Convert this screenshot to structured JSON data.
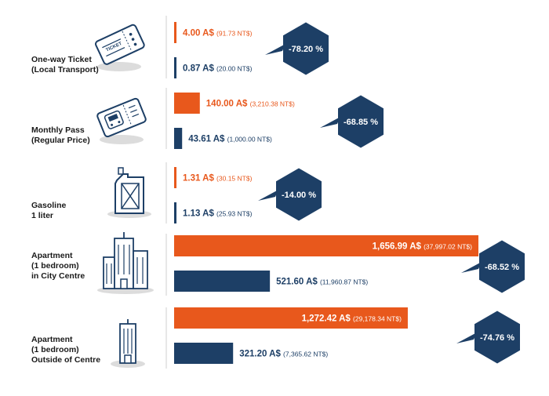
{
  "colors": {
    "orange": "#E8581C",
    "navy": "#1D3F66",
    "icon_stroke": "#1D3F66",
    "icon_shadow": "#DCDCDC"
  },
  "chart_data": {
    "type": "bar",
    "orientation": "horizontal",
    "categories": [
      {
        "lines": [
          "One-way Ticket",
          "(Local Transport)"
        ],
        "icon": "ticket-icon"
      },
      {
        "lines": [
          "Monthly Pass",
          "(Regular Price)"
        ],
        "icon": "train-pass-icon"
      },
      {
        "lines": [
          "Gasoline",
          "1 liter"
        ],
        "icon": "jerrycan-icon"
      },
      {
        "lines": [
          "Apartment",
          "(1 bedroom)",
          "in City Centre"
        ],
        "icon": "city-buildings-icon"
      },
      {
        "lines": [
          "Apartment",
          "(1 bedroom)",
          "Outside of Centre"
        ],
        "icon": "single-building-icon"
      }
    ],
    "series": [
      {
        "color": "#E8581C",
        "values": [
          4.0,
          140.0,
          1.31,
          1656.99,
          1272.42
        ],
        "labels": [
          "4.00 A$",
          "140.00 A$",
          "1.31 A$",
          "1,656.99 A$",
          "1,272.42 A$"
        ],
        "sub_labels": [
          "(91.73 NT$)",
          "(3,210.38 NT$)",
          "(30.15 NT$)",
          "(37,997.02 NT$)",
          "(29,178.34 NT$)"
        ]
      },
      {
        "color": "#1D3F66",
        "values": [
          0.87,
          43.61,
          1.13,
          521.6,
          321.2
        ],
        "labels": [
          "0.87 A$",
          "43.61 A$",
          "1.13 A$",
          "521.60 A$",
          "321.20 A$"
        ],
        "sub_labels": [
          "(20.00 NT$)",
          "(1,000.00 NT$)",
          "(25.93 NT$)",
          "(11,960.87 NT$)",
          "(7,365.62 NT$)"
        ]
      }
    ],
    "differences": [
      "-78.20 %",
      "-68.85 %",
      "-14.00 %",
      "-68.52 %",
      "-74.76 %"
    ],
    "xlim": [
      0,
      1656.99
    ],
    "grid": false,
    "legend": "none"
  }
}
